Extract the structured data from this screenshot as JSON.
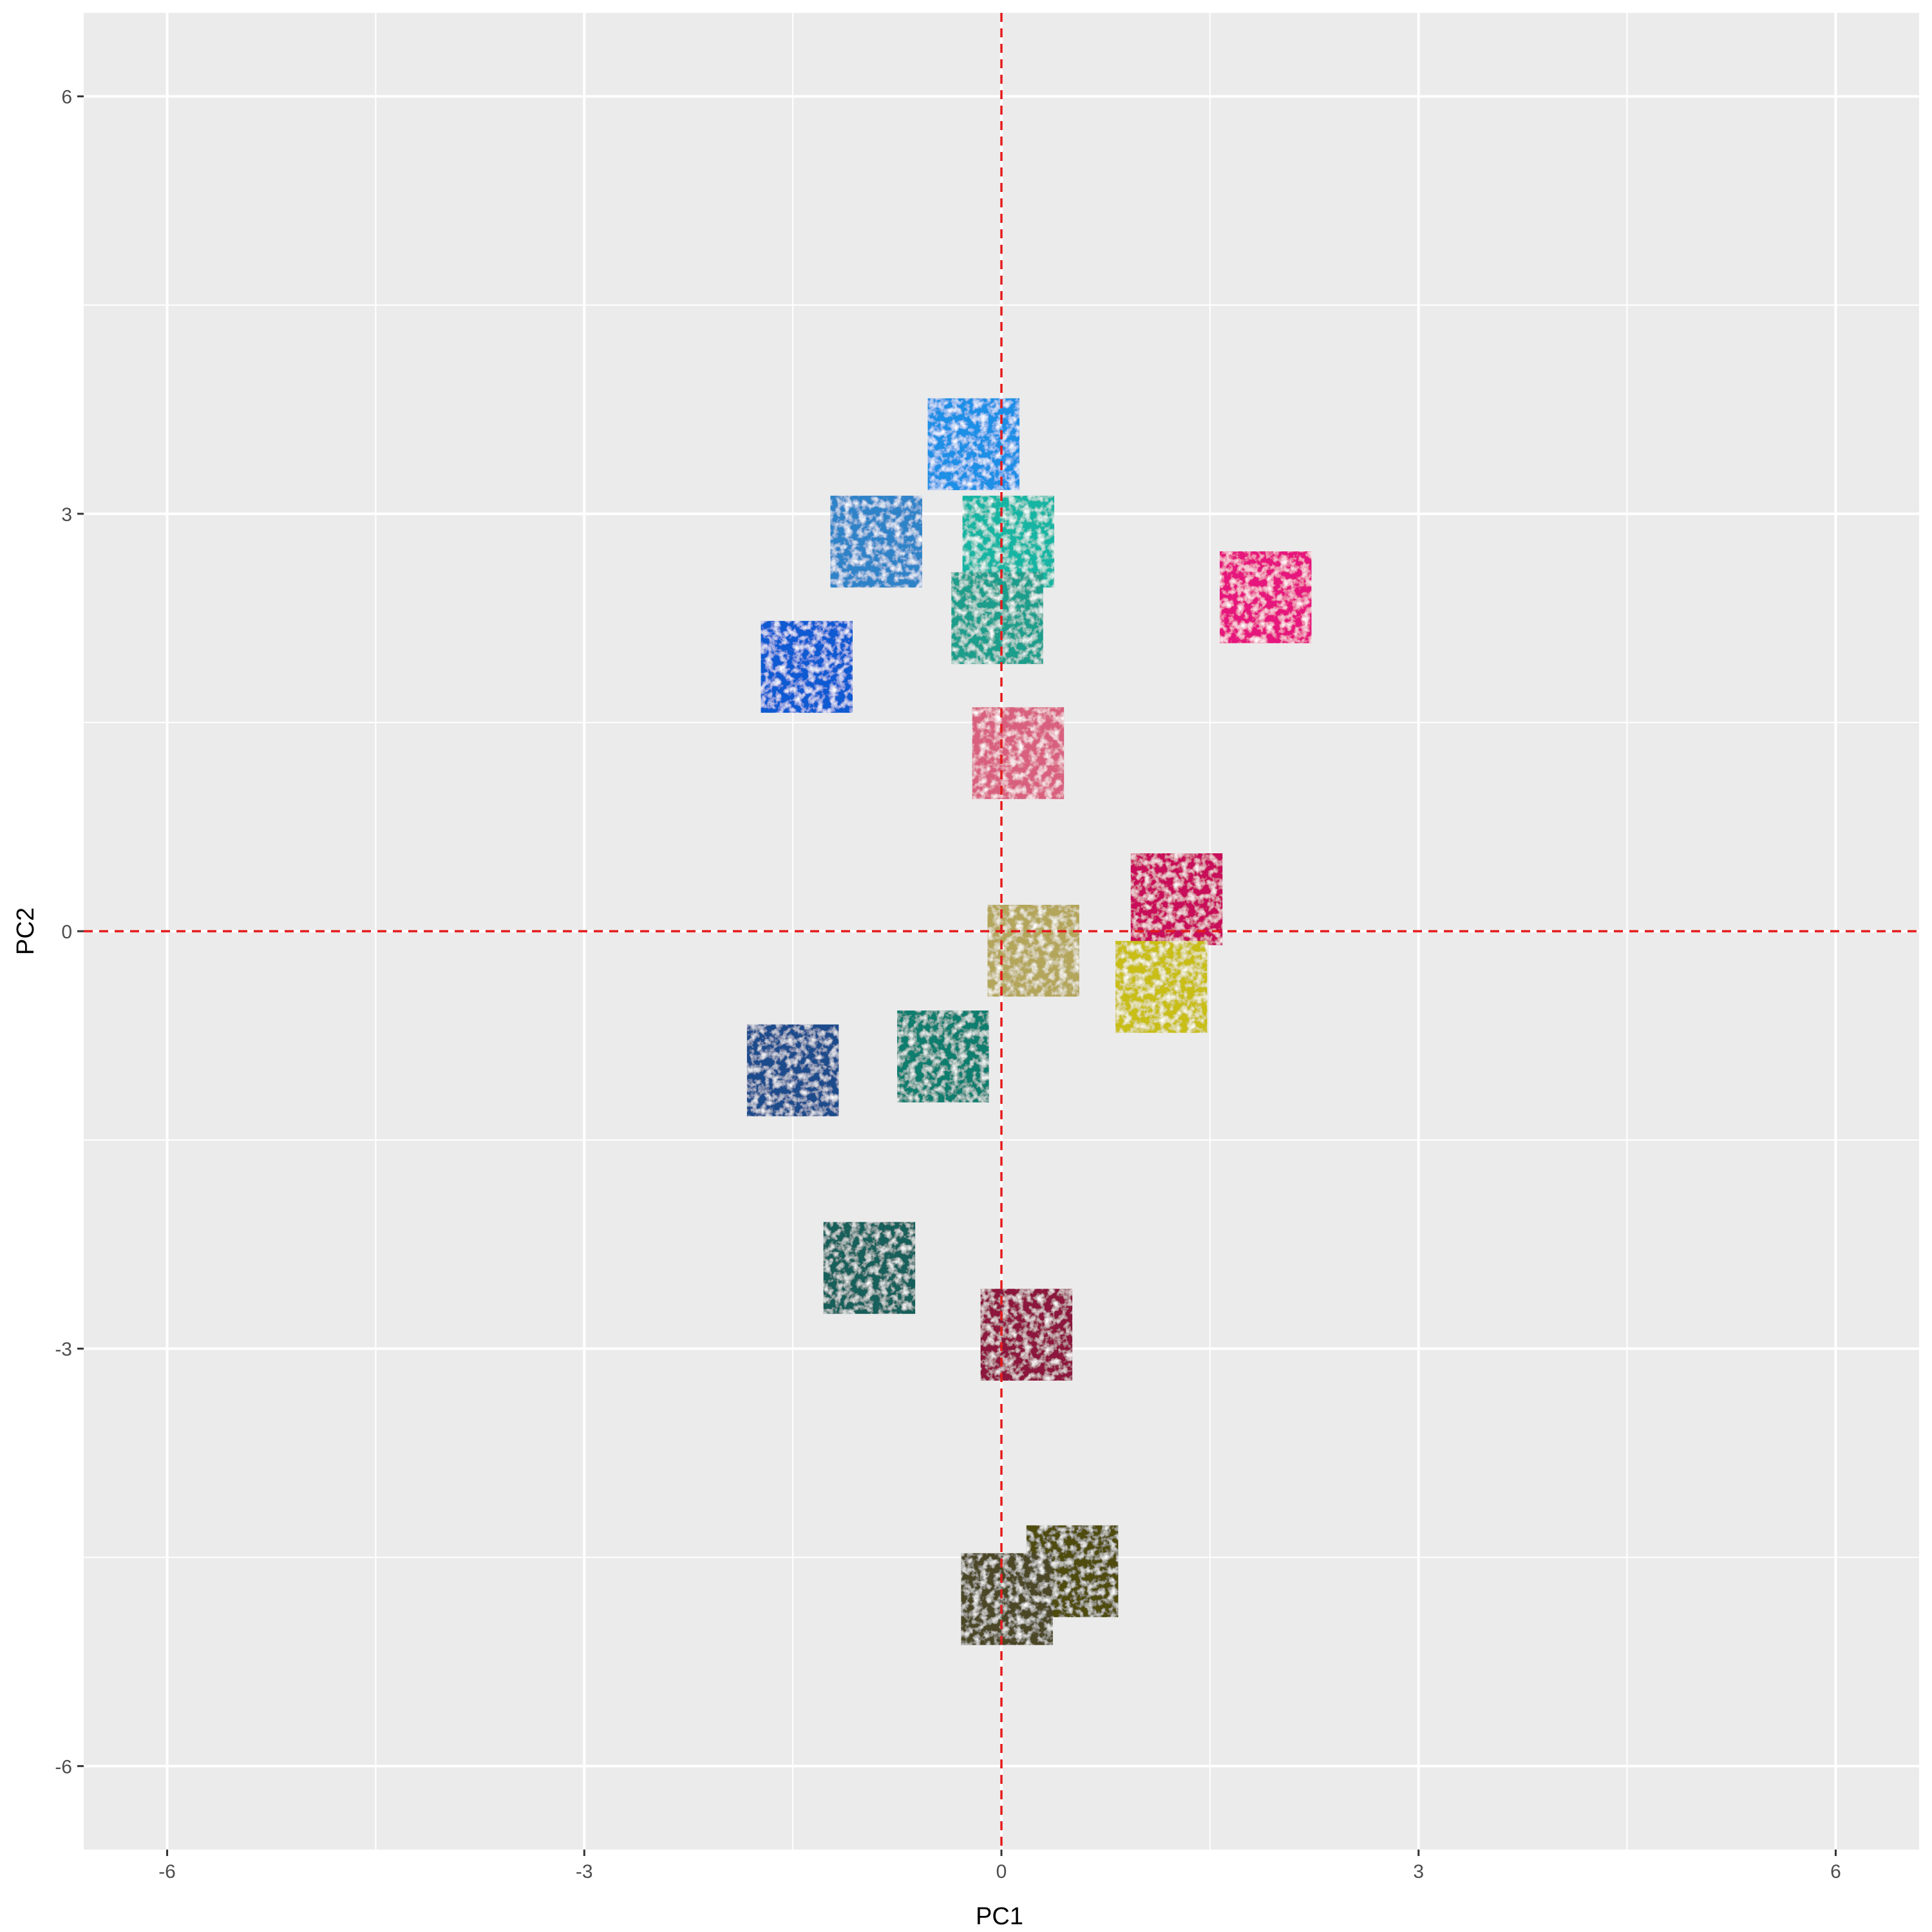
{
  "chart_data": {
    "type": "scatter",
    "title": "",
    "xlabel": "PC1",
    "ylabel": "PC2",
    "xlim": [
      -6.6,
      6.6
    ],
    "ylim": [
      -6.6,
      6.6
    ],
    "x_ticks": [
      -6,
      -3,
      0,
      3,
      6
    ],
    "y_ticks": [
      -6,
      -3,
      0,
      3,
      6
    ],
    "x_tick_labels": [
      "-6",
      "-3",
      "0",
      "3",
      "6"
    ],
    "y_tick_labels": [
      "-6",
      "-3",
      "0",
      "3",
      "6"
    ],
    "grid": true,
    "legend": "none",
    "reference_lines": {
      "x": 0,
      "y": 0,
      "color": "#e41a1c",
      "style": "dashed"
    },
    "marker": "textured square tile",
    "points": [
      {
        "x": -0.2,
        "y": 3.5,
        "color": "#1e8fe6"
      },
      {
        "x": -0.9,
        "y": 2.8,
        "color": "#2d83c8"
      },
      {
        "x": 0.05,
        "y": 2.8,
        "color": "#14b5a3"
      },
      {
        "x": 1.9,
        "y": 2.4,
        "color": "#e6197d"
      },
      {
        "x": -0.03,
        "y": 2.25,
        "color": "#1e9e8c"
      },
      {
        "x": -1.4,
        "y": 1.9,
        "color": "#0f5ad2"
      },
      {
        "x": 0.12,
        "y": 1.28,
        "color": "#d8607e"
      },
      {
        "x": 1.26,
        "y": 0.23,
        "color": "#c80f5a"
      },
      {
        "x": 0.23,
        "y": -0.14,
        "color": "#b3a55a"
      },
      {
        "x": 1.15,
        "y": -0.4,
        "color": "#c8be19"
      },
      {
        "x": -0.42,
        "y": -0.9,
        "color": "#0f7d6e"
      },
      {
        "x": -1.5,
        "y": -1.0,
        "color": "#1e4b8c"
      },
      {
        "x": -0.95,
        "y": -2.42,
        "color": "#145f5a"
      },
      {
        "x": 0.18,
        "y": -2.9,
        "color": "#8c193c"
      },
      {
        "x": 0.51,
        "y": -4.6,
        "color": "#504b0a"
      },
      {
        "x": 0.04,
        "y": -4.8,
        "color": "#4b4628"
      }
    ]
  }
}
